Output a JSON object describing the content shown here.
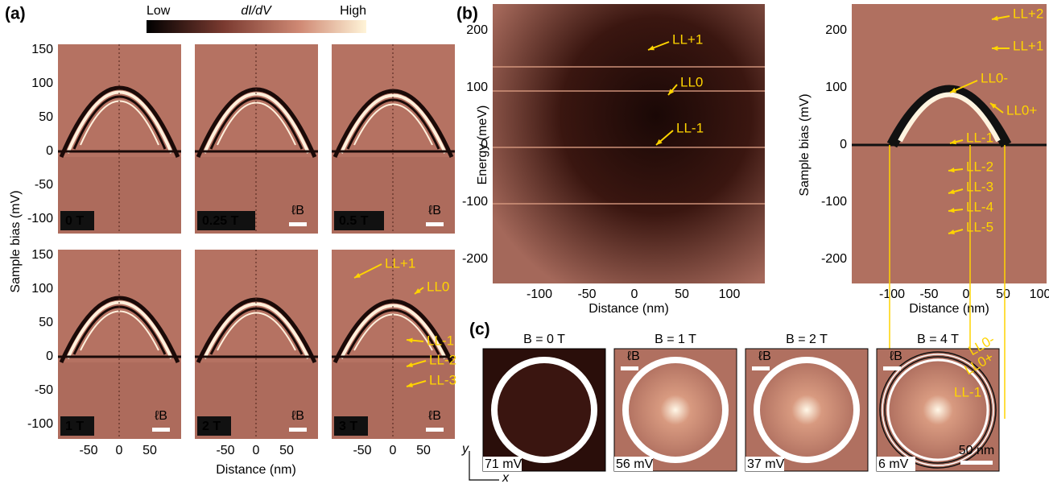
{
  "panel_a": {
    "label": "(a)",
    "colorbar": {
      "low": "Low",
      "title": "dI/dV",
      "high": "High"
    },
    "y_axis_label": "Sample bias (mV)",
    "x_axis_label": "Distance (nm)",
    "yticks": [
      "150",
      "100",
      "50",
      "0",
      "-50",
      "-100"
    ],
    "xticks": [
      "-50",
      "0",
      "50"
    ],
    "subpanels": [
      {
        "field": "0 T"
      },
      {
        "field": "0.25 T",
        "scale": "ℓB"
      },
      {
        "field": "0.5 T",
        "scale": "ℓB"
      },
      {
        "field": "1 T",
        "scale": "ℓB"
      },
      {
        "field": "2 T",
        "scale": "ℓB"
      },
      {
        "field": "3 T",
        "scale": "ℓB"
      }
    ],
    "annotations": [
      "LL+1",
      "LL0",
      "LL-1",
      "LL-2",
      "LL-3"
    ]
  },
  "panel_b": {
    "label": "(b)",
    "left": {
      "y_axis_label": "Energy (meV)",
      "x_axis_label": "Distance (nm)",
      "yticks": [
        "200",
        "100",
        "0",
        "-100",
        "-200"
      ],
      "xticks": [
        "-100",
        "-50",
        "0",
        "50",
        "100"
      ],
      "annotations": [
        "LL+1",
        "LL0",
        "LL-1"
      ]
    },
    "right": {
      "y_axis_label": "Sample bias (mV)",
      "x_axis_label": "Distance (nm)",
      "yticks": [
        "200",
        "100",
        "0",
        "-100",
        "-200"
      ],
      "xticks": [
        "-100",
        "-50",
        "0",
        "50",
        "100"
      ],
      "annotations": [
        "LL+2",
        "LL+1",
        "LL0-",
        "LL0+",
        "LL-1",
        "LL-2",
        "LL-3",
        "LL-4",
        "LL-5"
      ]
    }
  },
  "panel_c": {
    "label": "(c)",
    "axes": [
      "y",
      "x"
    ],
    "maps": [
      {
        "title": "B = 0 T",
        "bias": "71 mV"
      },
      {
        "title": "B = 1 T",
        "bias": "56 mV",
        "scale": "ℓB"
      },
      {
        "title": "B = 2 T",
        "bias": "37 mV",
        "scale": "ℓB"
      },
      {
        "title": "B = 4 T",
        "bias": "6 mV",
        "scale": "ℓB"
      }
    ],
    "scale_bar": "50 nm",
    "annotations": [
      "LL0-",
      "LL0+",
      "LL-1"
    ]
  }
}
